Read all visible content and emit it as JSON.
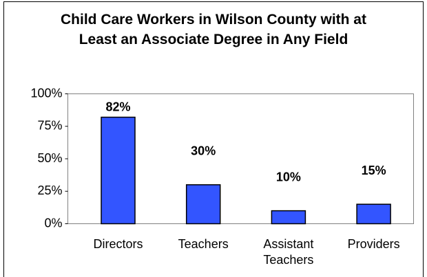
{
  "chart_data": {
    "type": "bar",
    "title": "Child Care Workers in Wilson County with at Least an Associate Degree in Any Field",
    "categories": [
      "Directors",
      "Teachers",
      "Assistant Teachers",
      "Providers"
    ],
    "values": [
      82,
      30,
      10,
      15
    ],
    "value_labels": [
      "82%",
      "30%",
      "10%",
      "15%"
    ],
    "color": "#3355ff",
    "ylim": [
      0,
      100
    ],
    "yticks": [
      {
        "value": 0,
        "label": "0%"
      },
      {
        "value": 25,
        "label": "25%"
      },
      {
        "value": 50,
        "label": "50%"
      },
      {
        "value": 75,
        "label": "75%"
      },
      {
        "value": 100,
        "label": "100%"
      }
    ],
    "grid": false
  }
}
